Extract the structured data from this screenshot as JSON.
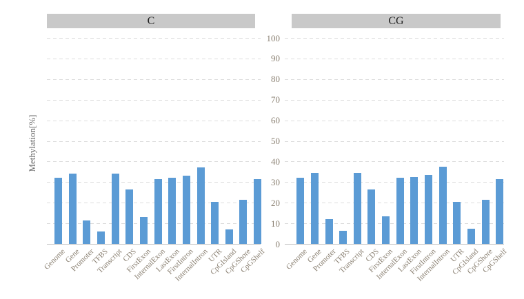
{
  "figure": {
    "ylabel": "Methylation[%]"
  },
  "colors": {
    "bar": "#5b9bd5",
    "panel_header_bg": "#c9c9c9",
    "gridline": "#dcdcdc",
    "axis_line": "#c2c2c2",
    "tick_text": "#8a8072",
    "header_text": "#1f1f1f"
  },
  "chart_data": [
    {
      "type": "bar",
      "title": "C",
      "categories": [
        "Genome",
        "Gene",
        "Promoter",
        "TFBS",
        "Transcript",
        "CDS",
        "FirstExon",
        "InternalExon",
        "LastExon",
        "FirstIntron",
        "InternalIntron",
        "UTR",
        "CpGIsland",
        "CpGShore",
        "CpGShelf"
      ],
      "values": [
        32,
        34,
        11.5,
        6,
        34,
        26.5,
        13,
        31.5,
        32,
        33,
        37,
        20.5,
        7,
        21.5,
        31.5
      ],
      "xlabel": "",
      "ylabel": "Methylation[%]",
      "ylim": [
        0,
        100
      ],
      "yticks": [
        0,
        10,
        20,
        30,
        40,
        50,
        60,
        70,
        80,
        90,
        100
      ],
      "grid": "horizontal-dashed",
      "legend": "none",
      "bar_color": "#5b9bd5"
    },
    {
      "type": "bar",
      "title": "CG",
      "categories": [
        "Genome",
        "Gene",
        "Promoter",
        "TFBS",
        "Transcript",
        "CDS",
        "FirstExon",
        "InternalExon",
        "LastExon",
        "FirstIntron",
        "InternalIntron",
        "UTR",
        "CpGIsland",
        "CpGShore",
        "CpGShelf"
      ],
      "values": [
        32,
        34.5,
        12,
        6.5,
        34.5,
        26.5,
        13.5,
        32,
        32.5,
        33.5,
        37.5,
        20.5,
        7.5,
        21.5,
        31.5
      ],
      "xlabel": "",
      "ylabel": "Methylation[%]",
      "ylim": [
        0,
        100
      ],
      "yticks": [
        0,
        10,
        20,
        30,
        40,
        50,
        60,
        70,
        80,
        90,
        100
      ],
      "grid": "horizontal-dashed",
      "legend": "none",
      "bar_color": "#5b9bd5"
    }
  ]
}
